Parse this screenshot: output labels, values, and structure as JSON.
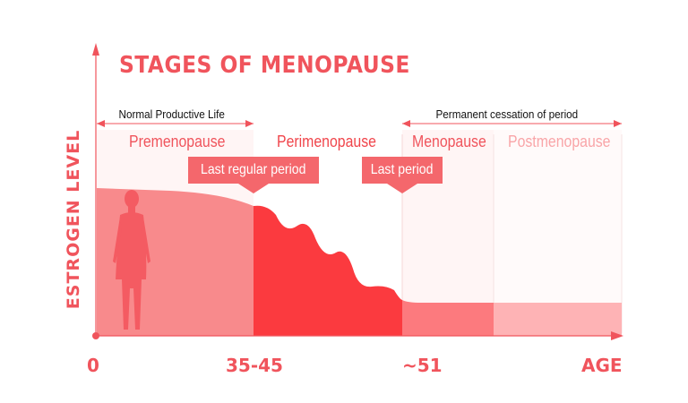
{
  "title": "STAGES OF MENOPAUSE",
  "y_axis_label": "ESTROGEN LEVEL",
  "spans": {
    "normal_life": "Normal Productive Life",
    "permanent_cessation": "Permanent cessation of period"
  },
  "stages": [
    "Premenopause",
    "Perimenopause",
    "Menopause",
    "Postmenopause"
  ],
  "callouts": {
    "last_regular": "Last regular period",
    "last_period": "Last period"
  },
  "x_ticks": [
    "0",
    "35-45",
    "~51",
    "AGE"
  ],
  "colors": {
    "accent": "#f0545c",
    "premenopause": "#f88a8c",
    "perimenopause": "#fb3a3f",
    "menopause": "#fc7a7e",
    "postmenopause": "#feb3b5",
    "callout": "#f4676c"
  },
  "icons": [
    "woman-silhouette-icon"
  ]
}
